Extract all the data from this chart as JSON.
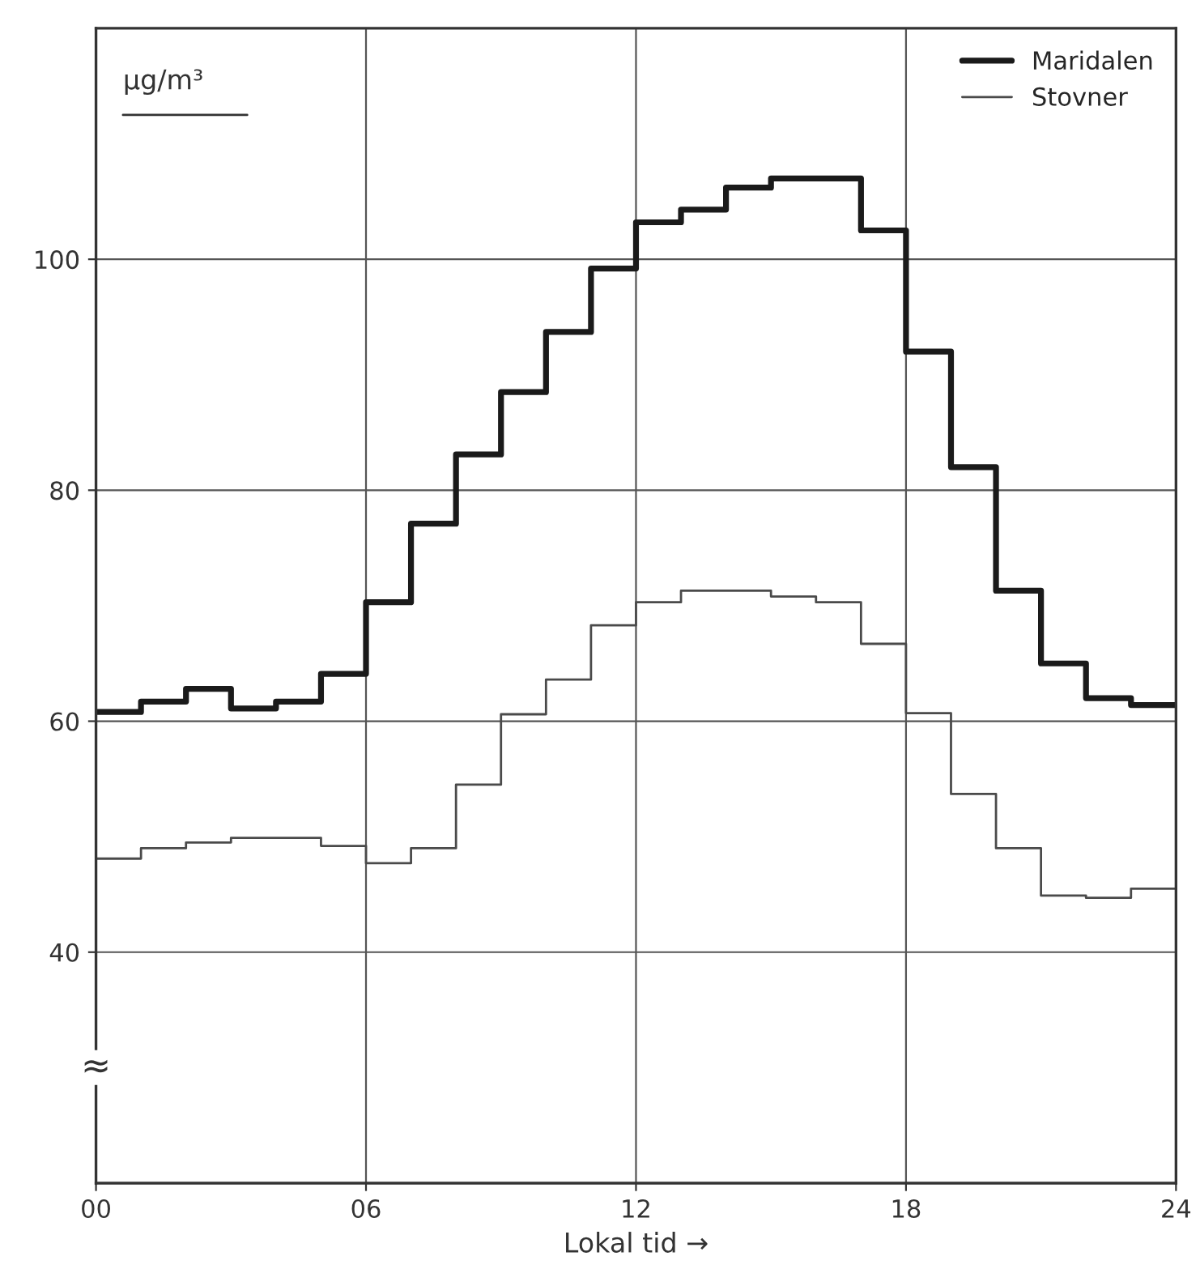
{
  "chart_data": {
    "type": "step",
    "ylabel": "µg/m³",
    "xlabel": "Lokal tid →",
    "x": [
      0,
      1,
      2,
      3,
      4,
      5,
      6,
      7,
      8,
      9,
      10,
      11,
      12,
      13,
      14,
      15,
      16,
      17,
      18,
      19,
      20,
      21,
      22,
      23,
      24
    ],
    "series": [
      {
        "name": "Maridalen",
        "color": "#1a1a1a",
        "values": [
          60.8,
          61.7,
          62.8,
          61.1,
          61.7,
          64.1,
          70.3,
          77.1,
          83.1,
          88.5,
          93.7,
          99.2,
          103.2,
          104.3,
          106.2,
          107.0,
          107.0,
          102.5,
          92.0,
          82.0,
          71.3,
          65.0,
          62.0,
          61.4,
          61.4
        ]
      },
      {
        "name": "Stovner",
        "color": "#4a4a4a",
        "values": [
          48.1,
          49.0,
          49.5,
          49.9,
          49.9,
          49.2,
          47.7,
          49.0,
          54.5,
          60.6,
          63.6,
          68.3,
          70.3,
          71.3,
          71.3,
          70.8,
          70.3,
          66.7,
          60.7,
          53.7,
          49.0,
          44.9,
          44.7,
          45.5,
          45.5
        ]
      }
    ],
    "xlim": [
      0,
      24
    ],
    "xticks": [
      {
        "value": 0,
        "label": "00"
      },
      {
        "value": 6,
        "label": "06"
      },
      {
        "value": 12,
        "label": "12"
      },
      {
        "value": 18,
        "label": "18"
      },
      {
        "value": 24,
        "label": "24"
      }
    ],
    "ylim": [
      20,
      120
    ],
    "yticks": [
      40,
      60,
      80,
      100
    ],
    "annotations": [
      "≈"
    ],
    "grid": true,
    "legend": "top right"
  }
}
